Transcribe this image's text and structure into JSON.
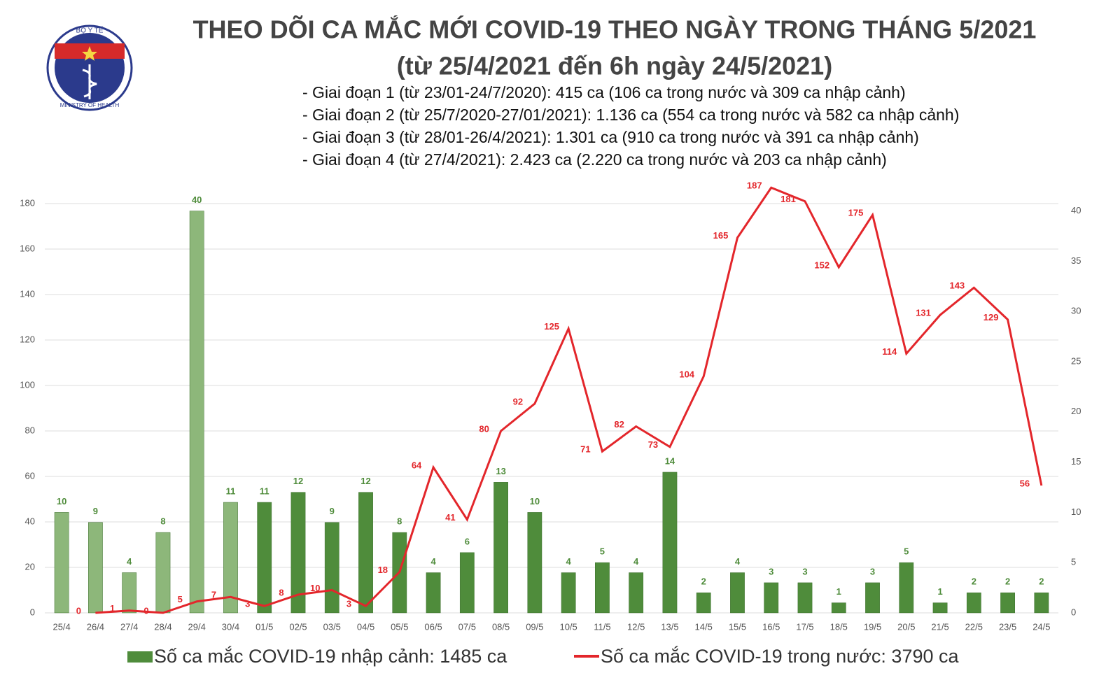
{
  "chart_data": {
    "type": "bar_line",
    "logo": {
      "top": "BỘ Y TẾ",
      "bottom": "MINISTRY OF HEALTH"
    },
    "title": "THEO DÕI CA MẮC MỚI COVID-19 THEO NGÀY TRONG THÁNG 5/2021",
    "subtitle": "(từ 25/4/2021 đến 6h ngày 24/5/2021)",
    "notes": [
      "- Giai đoạn 1 (từ 23/01-24/7/2020): 415 ca (106 ca trong nước và 309 ca nhập cảnh)",
      "- Giai đoạn 2 (từ 25/7/2020-27/01/2021): 1.136 ca (554 ca trong nước và 582 ca nhập cảnh)",
      "- Giai đoạn 3 (từ 28/01-26/4/2021): 1.301 ca (910 ca trong nước và 391 ca nhập cảnh)",
      "- Giai đoạn 4 (từ 27/4/2021): 2.423 ca (2.220 ca trong nước và 203 ca nhập cảnh)"
    ],
    "categories": [
      "25/4",
      "26/4",
      "27/4",
      "28/4",
      "29/4",
      "30/4",
      "01/5",
      "02/5",
      "03/5",
      "04/5",
      "05/5",
      "06/5",
      "07/5",
      "08/5",
      "09/5",
      "10/5",
      "11/5",
      "12/5",
      "13/5",
      "14/5",
      "15/5",
      "16/5",
      "17/5",
      "18/5",
      "19/5",
      "20/5",
      "21/5",
      "22/5",
      "23/5",
      "24/5"
    ],
    "series": [
      {
        "name": "Số ca mắc COVID-19 nhập cảnh: 1485 ca",
        "type": "bar",
        "axis": "y2",
        "color": "#4f8c3b",
        "colors": [
          "#8db77a",
          "#8db77a",
          "#8db77a",
          "#8db77a",
          "#8db77a",
          "#8db77a",
          "#4f8c3b",
          "#4f8c3b",
          "#4f8c3b",
          "#4f8c3b",
          "#4f8c3b",
          "#4f8c3b",
          "#4f8c3b",
          "#4f8c3b",
          "#4f8c3b",
          "#4f8c3b",
          "#4f8c3b",
          "#4f8c3b",
          "#4f8c3b",
          "#4f8c3b",
          "#4f8c3b",
          "#4f8c3b",
          "#4f8c3b",
          "#4f8c3b",
          "#4f8c3b",
          "#4f8c3b",
          "#4f8c3b",
          "#4f8c3b",
          "#4f8c3b",
          "#4f8c3b"
        ],
        "values": [
          10,
          9,
          4,
          8,
          40,
          11,
          11,
          12,
          9,
          12,
          8,
          4,
          6,
          13,
          10,
          4,
          5,
          4,
          14,
          2,
          4,
          3,
          3,
          1,
          3,
          5,
          1,
          2,
          2,
          2
        ]
      },
      {
        "name": "Số ca mắc COVID-19 trong nước: 3790 ca",
        "type": "line",
        "axis": "y",
        "color": "#e3262b",
        "values": [
          null,
          0,
          1,
          0,
          5,
          7,
          3,
          8,
          10,
          3,
          18,
          64,
          41,
          80,
          92,
          125,
          71,
          82,
          73,
          104,
          165,
          187,
          181,
          152,
          175,
          114,
          131,
          143,
          129,
          56
        ]
      }
    ],
    "ylim": [
      0,
      190
    ],
    "yticks": [
      0,
      20,
      40,
      60,
      80,
      100,
      120,
      140,
      160,
      180
    ],
    "y2lim": [
      0,
      43
    ],
    "y2ticks": [
      0,
      5,
      10,
      15,
      20,
      25,
      30,
      35,
      40
    ],
    "grid": true
  }
}
